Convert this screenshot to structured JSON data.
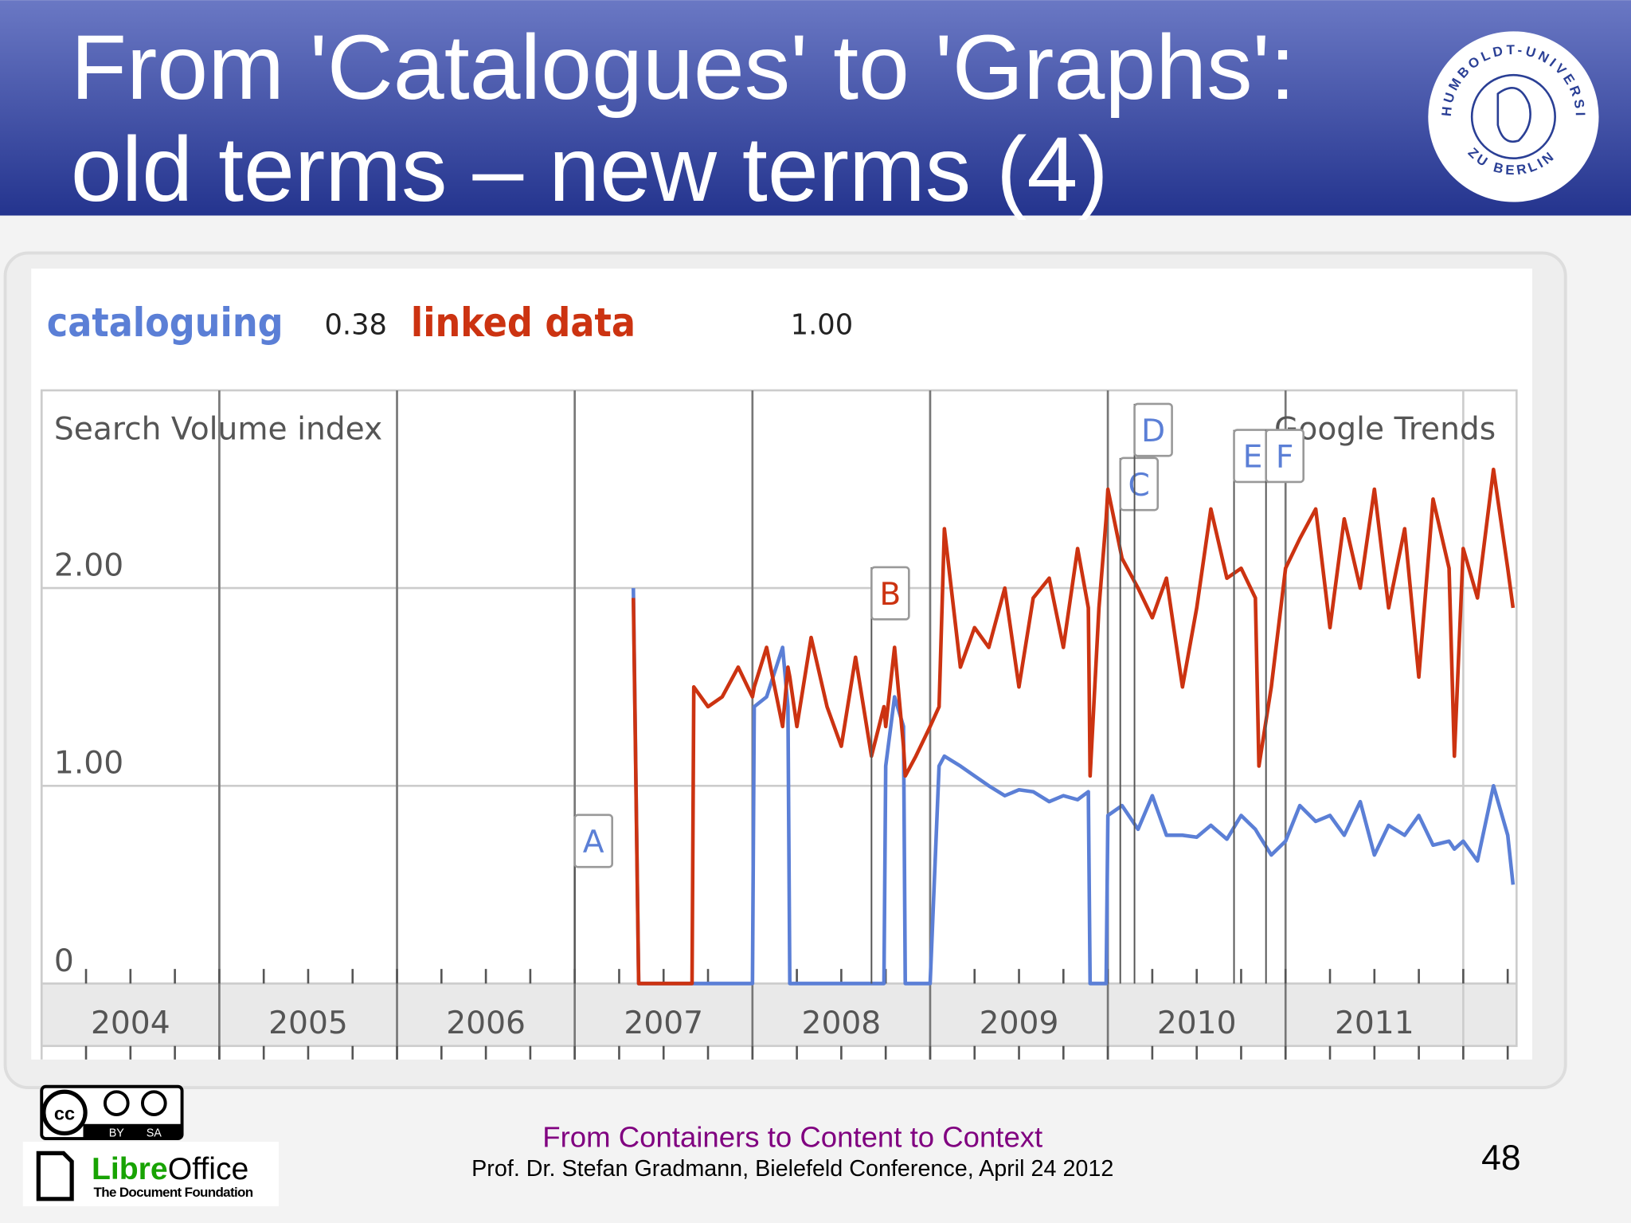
{
  "header": {
    "title_lines": [
      "From 'Catalogues' to 'Graphs':",
      "old terms – new terms (4)"
    ]
  },
  "seal": {
    "top_text": "HUMBOLDT-UNIVERSITÄT",
    "bottom_text": "ZU BERLIN"
  },
  "chart_data": {
    "type": "line",
    "y_label": "Search Volume index",
    "source": "Google Trends",
    "x": [
      2007.33,
      2007.36,
      2007.42,
      2007.5,
      2007.58,
      2007.66,
      2007.67,
      2007.75,
      2007.83,
      2007.92,
      2008.0,
      2008.01,
      2008.08,
      2008.17,
      2008.2,
      2008.21,
      2008.25,
      2008.33,
      2008.42,
      2008.5,
      2008.58,
      2008.67,
      2008.74,
      2008.75,
      2008.8,
      2008.85,
      2008.86,
      2008.92,
      2009.0,
      2009.05,
      2009.08,
      2009.17,
      2009.25,
      2009.33,
      2009.42,
      2009.5,
      2009.58,
      2009.67,
      2009.75,
      2009.83,
      2009.89,
      2009.9,
      2009.95,
      2009.99,
      2010.0,
      2010.08,
      2010.17,
      2010.25,
      2010.33,
      2010.42,
      2010.5,
      2010.58,
      2010.67,
      2010.75,
      2010.83,
      2010.85,
      2010.92,
      2011.0,
      2011.08,
      2011.17,
      2011.25,
      2011.33,
      2011.42,
      2011.5,
      2011.58,
      2011.67,
      2011.75,
      2011.83,
      2011.92,
      2011.95,
      2012.0,
      2012.08,
      2012.17,
      2012.25,
      2012.28
    ],
    "xlim": [
      2004,
      2012.3
    ],
    "xticks": [
      2004,
      2005,
      2006,
      2007,
      2008,
      2009,
      2010,
      2011
    ],
    "ylim": [
      0,
      3
    ],
    "yticks": [
      0,
      {
        "value": 1,
        "label": "1.00"
      },
      {
        "value": 2,
        "label": "2.00"
      }
    ],
    "grid": true,
    "series": [
      {
        "name": "cataloguing",
        "color": "#5b7fd6",
        "average": 0.38,
        "average_label": "0.38",
        "values": [
          2.0,
          0,
          0,
          0,
          0,
          0,
          0,
          0,
          0,
          0,
          0,
          1.4,
          1.45,
          1.7,
          1.4,
          0,
          0,
          0,
          0,
          0,
          0,
          0,
          0,
          1.1,
          1.45,
          1.3,
          0,
          0,
          0,
          1.1,
          1.15,
          1.1,
          1.05,
          1.0,
          0.95,
          0.98,
          0.97,
          0.92,
          0.95,
          0.93,
          0.97,
          0,
          0,
          0,
          0.85,
          0.9,
          0.78,
          0.95,
          0.75,
          0.75,
          0.74,
          0.8,
          0.73,
          0.85,
          0.78,
          0.75,
          0.65,
          0.72,
          0.9,
          0.82,
          0.85,
          0.75,
          0.92,
          0.65,
          0.8,
          0.75,
          0.85,
          0.7,
          0.72,
          0.68,
          0.72,
          0.62,
          1.0,
          0.75,
          0.5
        ]
      },
      {
        "name": "linked data",
        "color": "#cc3311",
        "average": 1,
        "average_label": "1.00",
        "values": [
          1.95,
          0,
          0,
          0,
          0,
          0,
          1.5,
          1.4,
          1.45,
          1.6,
          1.45,
          1.5,
          1.7,
          1.3,
          1.6,
          1.55,
          1.3,
          1.75,
          1.4,
          1.2,
          1.65,
          1.15,
          1.4,
          1.3,
          1.7,
          1.2,
          1.05,
          1.15,
          1.3,
          1.4,
          2.3,
          1.6,
          1.8,
          1.7,
          2.0,
          1.5,
          1.95,
          2.05,
          1.7,
          2.2,
          1.9,
          1.05,
          1.9,
          2.35,
          2.5,
          2.15,
          2.0,
          1.85,
          2.05,
          1.5,
          1.9,
          2.4,
          2.05,
          2.1,
          1.95,
          1.1,
          1.5,
          2.1,
          2.25,
          2.4,
          1.8,
          2.35,
          2.0,
          2.5,
          1.9,
          2.3,
          1.55,
          2.45,
          2.1,
          1.15,
          2.2,
          1.95,
          2.6,
          2.1,
          1.9
        ]
      }
    ],
    "annotations": [
      {
        "label": "A",
        "x": 2007.0
      },
      {
        "label": "B",
        "x": 2008.67
      },
      {
        "label": "C",
        "x": 2010.07
      },
      {
        "label": "D",
        "x": 2010.15
      },
      {
        "label": "E",
        "x": 2010.71
      },
      {
        "label": "F",
        "x": 2010.89
      }
    ]
  },
  "logos": {
    "cc": [
      "BY",
      "SA"
    ],
    "libreoffice": [
      "Libre",
      "Office",
      "The Document Foundation"
    ]
  },
  "footer": {
    "line1": "From Containers to Content to Context",
    "line2": "Prof. Dr. Stefan Gradmann, Bielefeld Conference, April 24 2012"
  },
  "page_number": 48
}
